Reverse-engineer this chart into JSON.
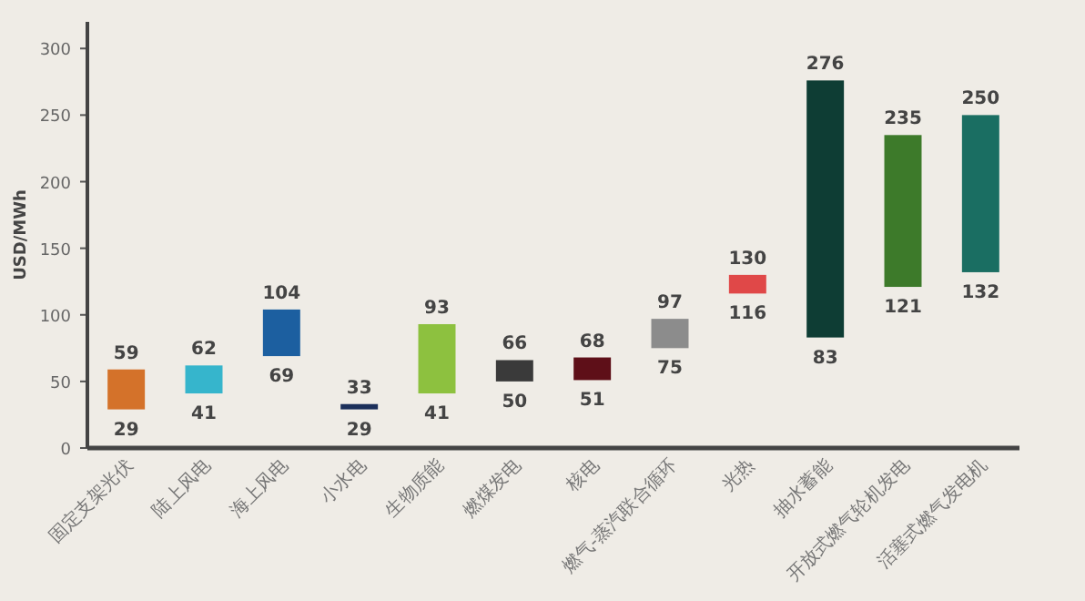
{
  "chart_data": {
    "type": "bar",
    "ylabel": "USD/MWh",
    "ylim": [
      0,
      320
    ],
    "yticks": [
      0,
      50,
      100,
      150,
      200,
      250,
      300
    ],
    "grid": false,
    "categories": [
      "固定支架光伏",
      "陆上风电",
      "海上风电",
      "小水电",
      "生物质能",
      "燃煤发电",
      "核电",
      "燃气-蒸汽联合循环",
      "光热",
      "抽水蓄能",
      "开放式燃气轮机发电",
      "活塞式燃气发电机"
    ],
    "base": [
      29,
      41,
      69,
      29,
      41,
      50,
      51,
      75,
      116,
      83,
      121,
      132
    ],
    "values": [
      30,
      21,
      35,
      4,
      52,
      16,
      17,
      22,
      14,
      193,
      114,
      118
    ],
    "colors": [
      "#d4722a",
      "#36b5cc",
      "#1c5fa0",
      "#1b2f5a",
      "#8dc13f",
      "#3a3a3a",
      "#5e0f18",
      "#8c8c8c",
      "#e04848",
      "#0e3d34",
      "#3d7a2a",
      "#1a6e62"
    ],
    "annotations": [
      {
        "text": "59",
        "x": "固定支架光伏",
        "y": 59
      },
      {
        "text": "29",
        "x": "固定支架光伏",
        "y": 29
      },
      {
        "text": "62",
        "x": "陆上风电",
        "y": 62
      },
      {
        "text": "41",
        "x": "陆上风电",
        "y": 41
      },
      {
        "text": "104",
        "x": "海上风电",
        "y": 104
      },
      {
        "text": "69",
        "x": "海上风电",
        "y": 69
      },
      {
        "text": "33",
        "x": "小水电",
        "y": 33
      },
      {
        "text": "29",
        "x": "小水电",
        "y": 29
      },
      {
        "text": "93",
        "x": "生物质能",
        "y": 93
      },
      {
        "text": "41",
        "x": "生物质能",
        "y": 41
      },
      {
        "text": "66",
        "x": "燃煤发电",
        "y": 66
      },
      {
        "text": "50",
        "x": "燃煤发电",
        "y": 50
      },
      {
        "text": "68",
        "x": "核电",
        "y": 68
      },
      {
        "text": "51",
        "x": "核电",
        "y": 51
      },
      {
        "text": "97",
        "x": "燃气-蒸汽联合循环",
        "y": 97
      },
      {
        "text": "75",
        "x": "燃气-蒸汽联合循环",
        "y": 75
      },
      {
        "text": "130",
        "x": "光热",
        "y": 130
      },
      {
        "text": "116",
        "x": "光热",
        "y": 116
      },
      {
        "text": "276",
        "x": "抽水蓄能",
        "y": 276
      },
      {
        "text": "83",
        "x": "抽水蓄能",
        "y": 83
      },
      {
        "text": "235",
        "x": "开放式燃气轮机发电",
        "y": 235
      },
      {
        "text": "121",
        "x": "开放式燃气轮机发电",
        "y": 121
      },
      {
        "text": "250",
        "x": "活塞式燃气发电机",
        "y": 250
      },
      {
        "text": "132",
        "x": "活塞式燃气发电机",
        "y": 132
      }
    ]
  }
}
